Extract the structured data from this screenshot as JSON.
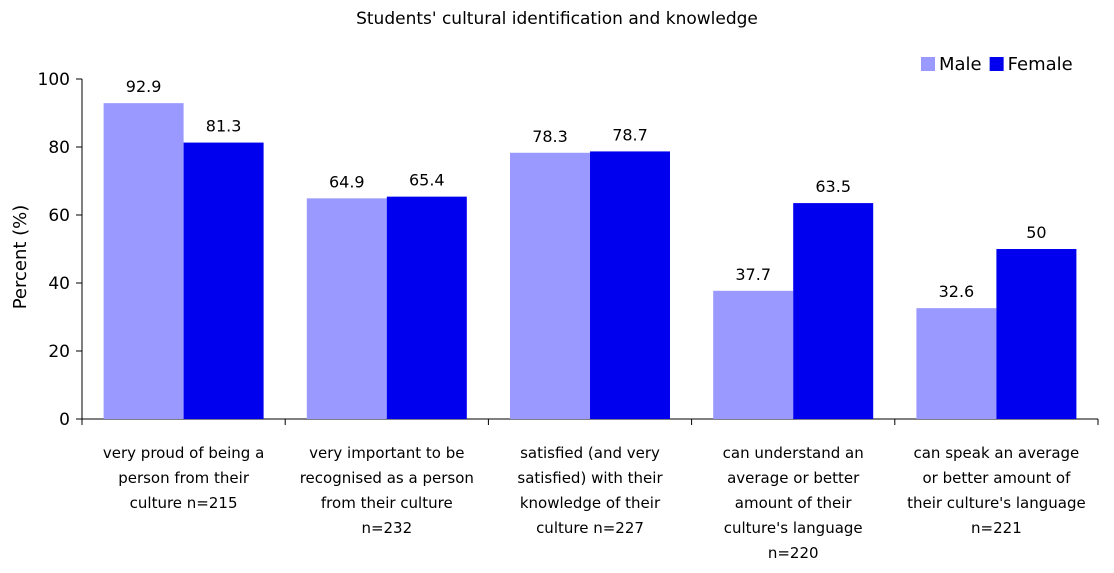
{
  "chart_data": {
    "type": "bar",
    "title": "Students' cultural identification and knowledge",
    "ylabel": "Percent (%)",
    "xlabel": "",
    "ylim": [
      0,
      100
    ],
    "yticks": [
      0,
      20,
      40,
      60,
      80,
      100
    ],
    "grid": false,
    "legend": "top-right",
    "categories": [
      [
        "very proud of being a",
        "person from their",
        "culture n=215"
      ],
      [
        "very important to be",
        "recognised as a person",
        "from their culture",
        "n=232"
      ],
      [
        "satisfied (and very",
        "satisfied) with their",
        "knowledge of their",
        "culture n=227"
      ],
      [
        "can understand an",
        "average or better",
        "amount of their",
        "culture's language",
        "n=220"
      ],
      [
        "can speak an average",
        "or better amount of",
        "their culture's language",
        "n=221"
      ]
    ],
    "series": [
      {
        "name": "Male",
        "color": "#9999ff",
        "values": [
          92.9,
          64.9,
          78.3,
          37.7,
          32.6
        ]
      },
      {
        "name": "Female",
        "color": "#0000ee",
        "values": [
          81.3,
          65.4,
          78.7,
          63.5,
          50
        ]
      }
    ]
  }
}
